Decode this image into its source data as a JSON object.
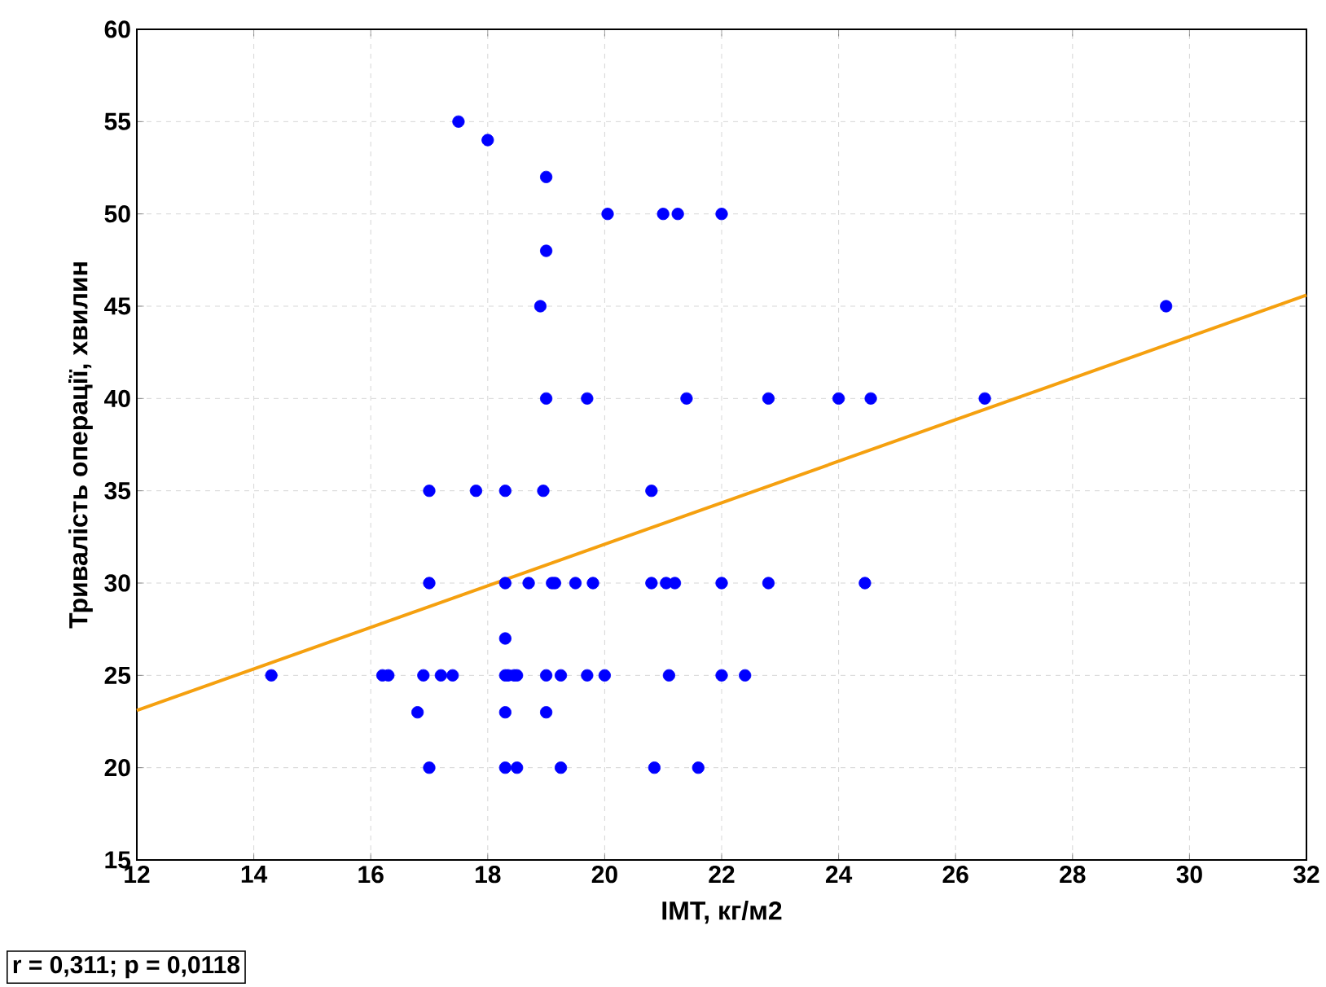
{
  "chart_data": {
    "type": "scatter",
    "xlabel": "ІМТ, кг/м2",
    "ylabel": "Тривалість операції, хвилин",
    "annotations": [
      "r = 0,311; p = 0,0118"
    ],
    "xlim": [
      12,
      32
    ],
    "ylim": [
      15,
      60
    ],
    "xticks": [
      12,
      14,
      16,
      18,
      20,
      22,
      24,
      26,
      28,
      30,
      32
    ],
    "yticks": [
      15,
      20,
      25,
      30,
      35,
      40,
      45,
      50,
      55,
      60
    ],
    "grid": true,
    "series": [
      {
        "marker": "circle",
        "color": "#0000ff",
        "x": [
          14.3,
          16.2,
          16.3,
          16.9,
          17.2,
          17.4,
          18.3,
          18.35,
          18.45,
          18.5,
          19.0,
          19.25,
          19.7,
          20.0,
          21.1,
          22.0,
          22.4,
          17.0,
          18.3,
          18.7,
          19.1,
          19.15,
          19.5,
          19.8,
          20.8,
          21.05,
          21.2,
          22.0,
          22.8,
          24.45,
          17.0,
          17.8,
          18.3,
          18.95,
          20.8,
          18.3,
          16.8,
          18.3,
          19.0,
          17.0,
          18.3,
          18.5,
          19.25,
          20.85,
          21.6,
          17.5,
          18.0,
          19.0,
          20.05,
          21.0,
          21.25,
          22.0,
          19.0,
          18.9,
          29.6,
          19.0,
          19.7,
          21.4,
          22.8,
          24.0,
          24.55,
          26.5
        ],
        "values": [
          25,
          25,
          25,
          25,
          25,
          25,
          25,
          25,
          25,
          25,
          25,
          25,
          25,
          25,
          25,
          25,
          25,
          30,
          30,
          30,
          30,
          30,
          30,
          30,
          30,
          30,
          30,
          30,
          30,
          30,
          35,
          35,
          35,
          35,
          35,
          27,
          23,
          23,
          23,
          20,
          20,
          20,
          20,
          20,
          20,
          55,
          54,
          52,
          50,
          50,
          50,
          50,
          48,
          45,
          45,
          40,
          40,
          40,
          40,
          40,
          40,
          40
        ]
      },
      {
        "type": "line",
        "marker": "none",
        "color": "#f5a00f",
        "x": [
          12,
          32
        ],
        "values": [
          23.1,
          45.6
        ]
      }
    ]
  }
}
